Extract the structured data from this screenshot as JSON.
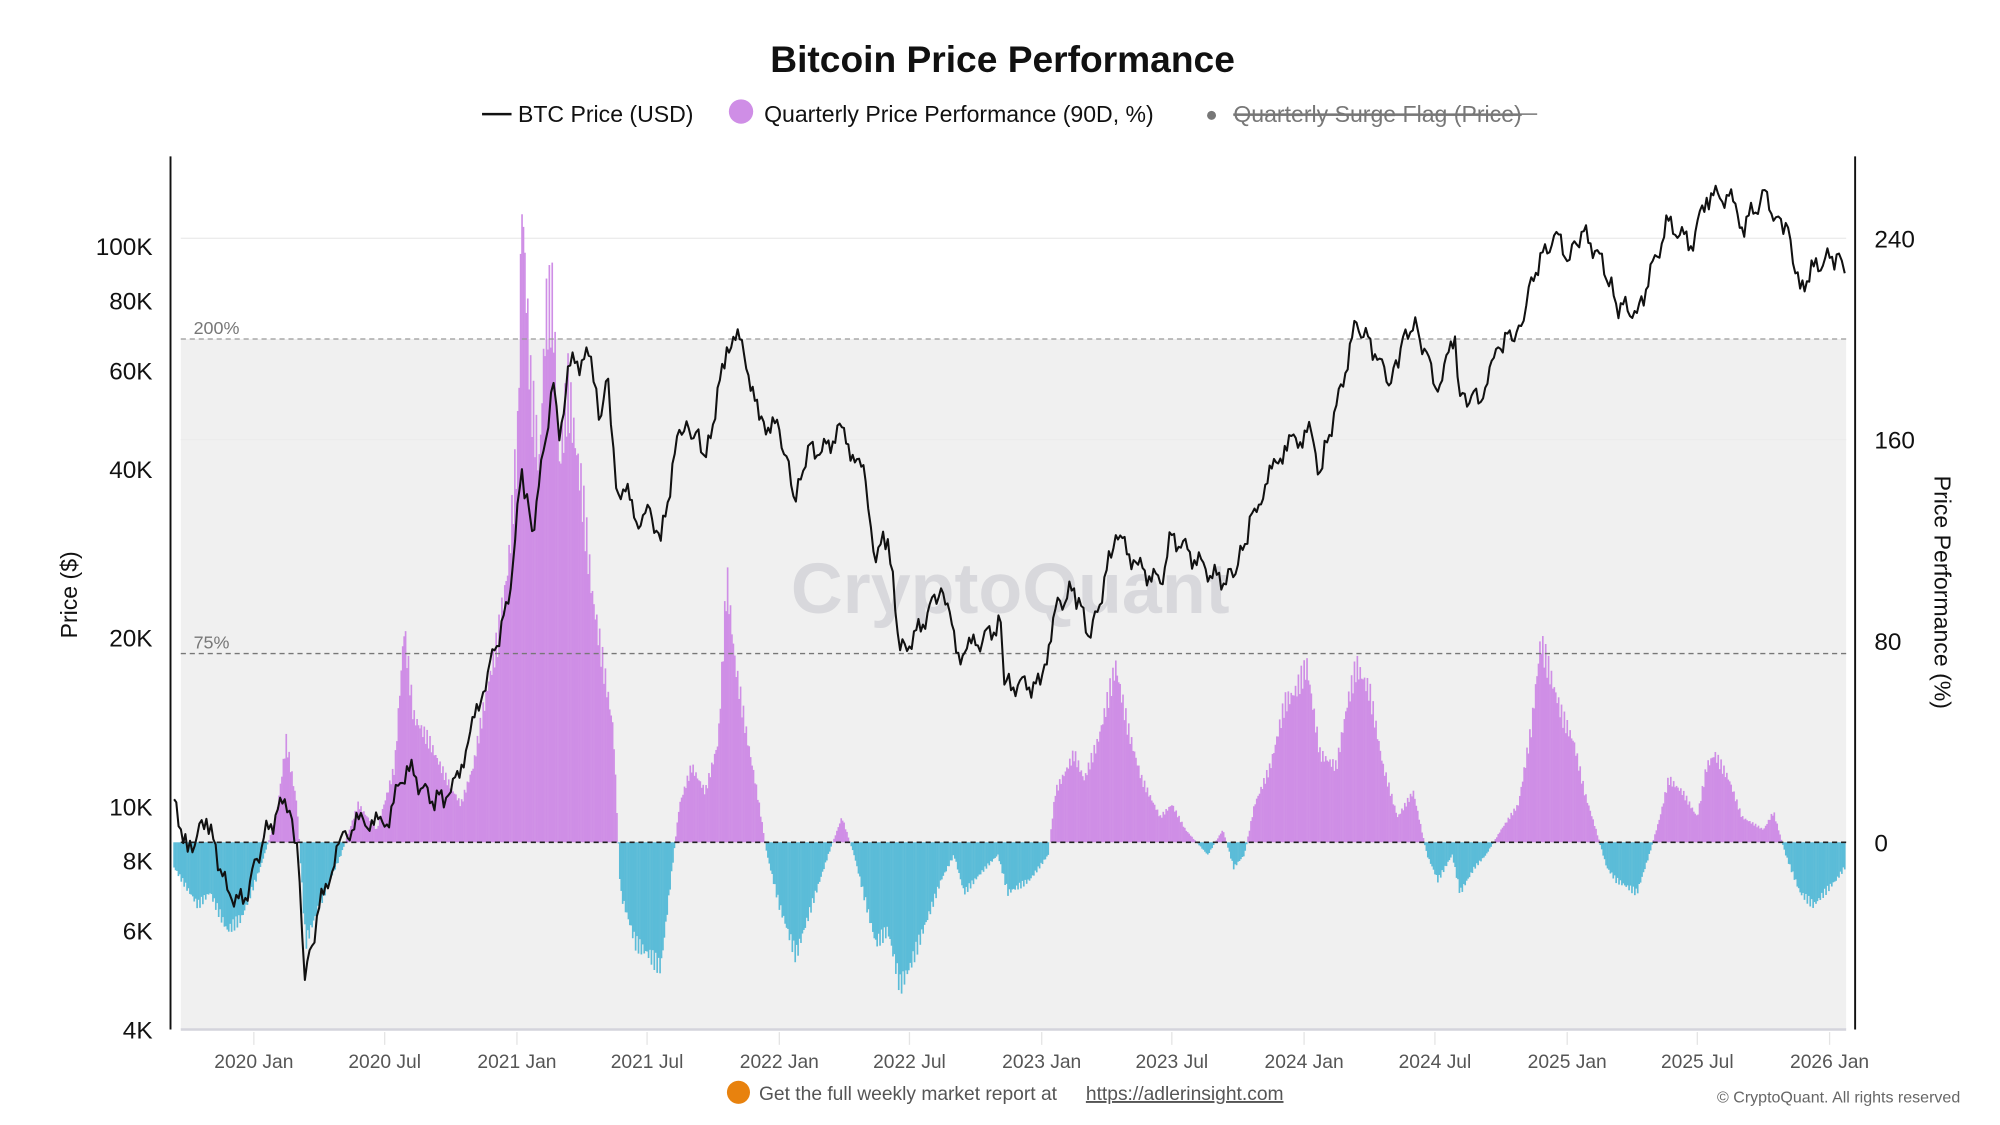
{
  "chart_data": {
    "type": "bar+line",
    "title": "Bitcoin Price Performance",
    "legend": {
      "placement": "top-center",
      "items": [
        {
          "label": "BTC Price (USD)",
          "marker": "line",
          "color": "#111111"
        },
        {
          "label": "Quarterly Price Performance (90D, %)",
          "marker": "circle",
          "color": "#cf8ee6"
        },
        {
          "label": "Quarterly Surge Flag (Price)",
          "marker": "dot",
          "color": "#777777",
          "hidden": true
        }
      ]
    },
    "ylabel_left": "Price ($)",
    "ylabel_right": "Price Performance (%)",
    "y_left_scale": "log",
    "y_left_range": [
      4000,
      130000
    ],
    "y_left_ticks": [
      "4K",
      "6K",
      "8K",
      "10K",
      "20K",
      "40K",
      "60K",
      "80K",
      "100K"
    ],
    "y_left_tick_values": [
      4000,
      6000,
      8000,
      10000,
      20000,
      40000,
      60000,
      80000,
      100000
    ],
    "y_right_range": [
      -75,
      270
    ],
    "y_right_ticks": [
      "0",
      "80",
      "160",
      "240"
    ],
    "y_right_tick_values": [
      0,
      80,
      160,
      240
    ],
    "x_ticks": [
      "2020 Jan",
      "2020 Jul",
      "2021 Jan",
      "2021 Jul",
      "2022 Jan",
      "2022 Jul",
      "2023 Jan",
      "2023 Jul",
      "2024 Jan",
      "2024 Jul",
      "2025 Jan",
      "2025 Jul",
      "2026 Jan"
    ],
    "x_tick_dates": [
      "2020-01-01",
      "2020-07-01",
      "2021-01-01",
      "2021-07-01",
      "2022-01-01",
      "2022-07-01",
      "2023-01-01",
      "2023-07-01",
      "2024-01-01",
      "2024-07-01",
      "2025-01-01",
      "2025-07-01",
      "2026-01-01"
    ],
    "x_range": [
      "2019-09-12",
      "2026-01-24"
    ],
    "reference_lines": [
      {
        "label": "200%",
        "value": 200
      },
      {
        "label": "75%",
        "value": 75
      }
    ],
    "colors": {
      "positive": "#cf8ee6",
      "negative": "#5bbcd8",
      "price": "#111111",
      "shade": "#f0f0f0"
    },
    "price_series": [
      [
        "2019-09-12",
        10300
      ],
      [
        "2019-10-01",
        8300
      ],
      [
        "2019-10-27",
        9500
      ],
      [
        "2019-11-25",
        7100
      ],
      [
        "2019-12-17",
        6700
      ],
      [
        "2020-01-15",
        8800
      ],
      [
        "2020-02-13",
        10300
      ],
      [
        "2020-03-01",
        8600
      ],
      [
        "2020-03-12",
        4900
      ],
      [
        "2020-04-01",
        6600
      ],
      [
        "2020-05-01",
        8800
      ],
      [
        "2020-06-01",
        9500
      ],
      [
        "2020-07-01",
        9200
      ],
      [
        "2020-08-01",
        11800
      ],
      [
        "2020-09-05",
        10200
      ],
      [
        "2020-10-01",
        10600
      ],
      [
        "2020-10-25",
        13000
      ],
      [
        "2020-11-15",
        16000
      ],
      [
        "2020-12-01",
        19000
      ],
      [
        "2020-12-20",
        23000
      ],
      [
        "2021-01-08",
        40000
      ],
      [
        "2021-01-22",
        31000
      ],
      [
        "2021-02-10",
        45000
      ],
      [
        "2021-02-21",
        57000
      ],
      [
        "2021-03-01",
        45000
      ],
      [
        "2021-03-13",
        61000
      ],
      [
        "2021-04-14",
        63500
      ],
      [
        "2021-04-25",
        49000
      ],
      [
        "2021-05-08",
        58000
      ],
      [
        "2021-05-19",
        37000
      ],
      [
        "2021-06-01",
        36500
      ],
      [
        "2021-06-22",
        31700
      ],
      [
        "2021-07-05",
        34000
      ],
      [
        "2021-07-20",
        29800
      ],
      [
        "2021-08-15",
        47000
      ],
      [
        "2021-09-07",
        46500
      ],
      [
        "2021-09-21",
        42000
      ],
      [
        "2021-10-20",
        66000
      ],
      [
        "2021-11-10",
        68000
      ],
      [
        "2021-12-04",
        49000
      ],
      [
        "2022-01-01",
        47000
      ],
      [
        "2022-01-24",
        35000
      ],
      [
        "2022-02-10",
        44000
      ],
      [
        "2022-03-01",
        43000
      ],
      [
        "2022-03-29",
        47500
      ],
      [
        "2022-05-01",
        38000
      ],
      [
        "2022-05-12",
        28500
      ],
      [
        "2022-06-01",
        30000
      ],
      [
        "2022-06-18",
        19000
      ],
      [
        "2022-07-01",
        19300
      ],
      [
        "2022-08-14",
        24500
      ],
      [
        "2022-09-07",
        18800
      ],
      [
        "2022-10-01",
        19400
      ],
      [
        "2022-11-05",
        21300
      ],
      [
        "2022-11-10",
        16500
      ],
      [
        "2022-12-30",
        16500
      ],
      [
        "2023-01-20",
        22500
      ],
      [
        "2023-02-15",
        24500
      ],
      [
        "2023-03-10",
        20000
      ],
      [
        "2023-04-14",
        30500
      ],
      [
        "2023-05-15",
        27000
      ],
      [
        "2023-06-15",
        25000
      ],
      [
        "2023-07-01",
        30500
      ],
      [
        "2023-08-17",
        26500
      ],
      [
        "2023-09-11",
        25000
      ],
      [
        "2023-10-01",
        27000
      ],
      [
        "2023-10-24",
        34000
      ],
      [
        "2023-12-05",
        44000
      ],
      [
        "2024-01-11",
        46600
      ],
      [
        "2024-01-23",
        39500
      ],
      [
        "2024-02-15",
        52000
      ],
      [
        "2024-03-14",
        73000
      ],
      [
        "2024-04-15",
        63000
      ],
      [
        "2024-05-01",
        57000
      ],
      [
        "2024-05-21",
        71000
      ],
      [
        "2024-06-07",
        71000
      ],
      [
        "2024-07-05",
        55000
      ],
      [
        "2024-07-29",
        69000
      ],
      [
        "2024-08-05",
        54000
      ],
      [
        "2024-09-06",
        53500
      ],
      [
        "2024-09-27",
        66000
      ],
      [
        "2024-10-29",
        72000
      ],
      [
        "2024-11-12",
        88000
      ],
      [
        "2024-12-17",
        106000
      ],
      [
        "2025-01-01",
        94000
      ],
      [
        "2025-01-21",
        106000
      ],
      [
        "2025-02-15",
        97000
      ],
      [
        "2025-03-10",
        79000
      ],
      [
        "2025-04-08",
        76000
      ],
      [
        "2025-05-22",
        111000
      ],
      [
        "2025-06-22",
        100000
      ],
      [
        "2025-07-14",
        122000
      ],
      [
        "2025-08-14",
        123000
      ],
      [
        "2025-09-01",
        108000
      ],
      [
        "2025-10-06",
        125000
      ],
      [
        "2025-10-15",
        111000
      ],
      [
        "2025-11-01",
        110000
      ],
      [
        "2025-11-21",
        84000
      ],
      [
        "2025-12-10",
        92000
      ],
      [
        "2026-01-14",
        97000
      ],
      [
        "2026-01-22",
        89500
      ]
    ],
    "performance_series": [
      [
        "2019-09-12",
        -10
      ],
      [
        "2019-10-15",
        -25
      ],
      [
        "2019-11-01",
        -20
      ],
      [
        "2019-11-25",
        -35
      ],
      [
        "2019-12-15",
        -30
      ],
      [
        "2020-01-10",
        -10
      ],
      [
        "2020-02-01",
        10
      ],
      [
        "2020-02-15",
        40
      ],
      [
        "2020-03-01",
        15
      ],
      [
        "2020-03-13",
        -40
      ],
      [
        "2020-04-01",
        -25
      ],
      [
        "2020-05-01",
        -5
      ],
      [
        "2020-05-25",
        15
      ],
      [
        "2020-06-20",
        5
      ],
      [
        "2020-07-15",
        30
      ],
      [
        "2020-07-28",
        85
      ],
      [
        "2020-08-10",
        50
      ],
      [
        "2020-09-01",
        40
      ],
      [
        "2020-09-25",
        25
      ],
      [
        "2020-10-15",
        15
      ],
      [
        "2020-11-01",
        30
      ],
      [
        "2020-11-20",
        60
      ],
      [
        "2020-12-05",
        80
      ],
      [
        "2020-12-20",
        110
      ],
      [
        "2021-01-02",
        160
      ],
      [
        "2021-01-08",
        256
      ],
      [
        "2021-01-20",
        180
      ],
      [
        "2021-02-01",
        150
      ],
      [
        "2021-02-10",
        210
      ],
      [
        "2021-02-20",
        215
      ],
      [
        "2021-03-01",
        150
      ],
      [
        "2021-03-13",
        180
      ],
      [
        "2021-04-01",
        140
      ],
      [
        "2021-04-15",
        100
      ],
      [
        "2021-05-01",
        70
      ],
      [
        "2021-05-15",
        45
      ],
      [
        "2021-05-25",
        -20
      ],
      [
        "2021-06-15",
        -40
      ],
      [
        "2021-07-05",
        -45
      ],
      [
        "2021-07-20",
        -50
      ],
      [
        "2021-08-05",
        -10
      ],
      [
        "2021-08-15",
        15
      ],
      [
        "2021-09-01",
        30
      ],
      [
        "2021-09-20",
        20
      ],
      [
        "2021-10-08",
        40
      ],
      [
        "2021-10-20",
        105
      ],
      [
        "2021-11-01",
        70
      ],
      [
        "2021-11-15",
        45
      ],
      [
        "2021-12-01",
        20
      ],
      [
        "2021-12-15",
        -5
      ],
      [
        "2022-01-01",
        -25
      ],
      [
        "2022-01-24",
        -45
      ],
      [
        "2022-02-15",
        -25
      ],
      [
        "2022-03-10",
        -5
      ],
      [
        "2022-03-29",
        10
      ],
      [
        "2022-04-15",
        -5
      ],
      [
        "2022-05-15",
        -40
      ],
      [
        "2022-06-01",
        -35
      ],
      [
        "2022-06-18",
        -57
      ],
      [
        "2022-07-01",
        -50
      ],
      [
        "2022-07-20",
        -35
      ],
      [
        "2022-08-14",
        -15
      ],
      [
        "2022-09-01",
        -5
      ],
      [
        "2022-09-15",
        -20
      ],
      [
        "2022-10-15",
        -10
      ],
      [
        "2022-11-01",
        -5
      ],
      [
        "2022-11-15",
        -20
      ],
      [
        "2022-12-15",
        -15
      ],
      [
        "2023-01-10",
        -5
      ],
      [
        "2023-01-20",
        20
      ],
      [
        "2023-02-15",
        35
      ],
      [
        "2023-03-01",
        25
      ],
      [
        "2023-03-20",
        40
      ],
      [
        "2023-04-14",
        70
      ],
      [
        "2023-05-01",
        45
      ],
      [
        "2023-05-20",
        25
      ],
      [
        "2023-06-15",
        10
      ],
      [
        "2023-07-01",
        15
      ],
      [
        "2023-07-20",
        5
      ],
      [
        "2023-08-20",
        -5
      ],
      [
        "2023-09-10",
        5
      ],
      [
        "2023-09-25",
        -10
      ],
      [
        "2023-10-10",
        -5
      ],
      [
        "2023-10-24",
        15
      ],
      [
        "2023-11-15",
        30
      ],
      [
        "2023-12-05",
        55
      ],
      [
        "2023-12-20",
        60
      ],
      [
        "2024-01-05",
        70
      ],
      [
        "2024-01-23",
        35
      ],
      [
        "2024-02-15",
        30
      ],
      [
        "2024-03-01",
        55
      ],
      [
        "2024-03-14",
        70
      ],
      [
        "2024-04-01",
        60
      ],
      [
        "2024-04-20",
        30
      ],
      [
        "2024-05-10",
        10
      ],
      [
        "2024-06-01",
        20
      ],
      [
        "2024-06-20",
        -5
      ],
      [
        "2024-07-05",
        -15
      ],
      [
        "2024-07-25",
        -5
      ],
      [
        "2024-08-05",
        -20
      ],
      [
        "2024-08-25",
        -10
      ],
      [
        "2024-09-10",
        -5
      ],
      [
        "2024-10-01",
        5
      ],
      [
        "2024-10-25",
        15
      ],
      [
        "2024-11-12",
        45
      ],
      [
        "2024-11-25",
        80
      ],
      [
        "2024-12-10",
        65
      ],
      [
        "2024-12-25",
        50
      ],
      [
        "2025-01-10",
        40
      ],
      [
        "2025-01-25",
        20
      ],
      [
        "2025-02-10",
        5
      ],
      [
        "2025-02-25",
        -10
      ],
      [
        "2025-03-10",
        -15
      ],
      [
        "2025-04-08",
        -20
      ],
      [
        "2025-04-25",
        -5
      ],
      [
        "2025-05-10",
        10
      ],
      [
        "2025-05-22",
        25
      ],
      [
        "2025-06-10",
        20
      ],
      [
        "2025-07-01",
        10
      ],
      [
        "2025-07-14",
        30
      ],
      [
        "2025-07-25",
        35
      ],
      [
        "2025-08-14",
        25
      ],
      [
        "2025-09-01",
        10
      ],
      [
        "2025-10-01",
        5
      ],
      [
        "2025-10-15",
        12
      ],
      [
        "2025-11-01",
        -5
      ],
      [
        "2025-11-21",
        -20
      ],
      [
        "2025-12-10",
        -25
      ],
      [
        "2025-12-25",
        -20
      ],
      [
        "2026-01-10",
        -15
      ],
      [
        "2026-01-22",
        -10
      ]
    ],
    "watermark": "CryptoQuant"
  },
  "footer": {
    "promo_text": "Get the full weekly market report at",
    "promo_link": "https://adlerinsight.com",
    "copyright": "© CryptoQuant. All rights reserved"
  }
}
